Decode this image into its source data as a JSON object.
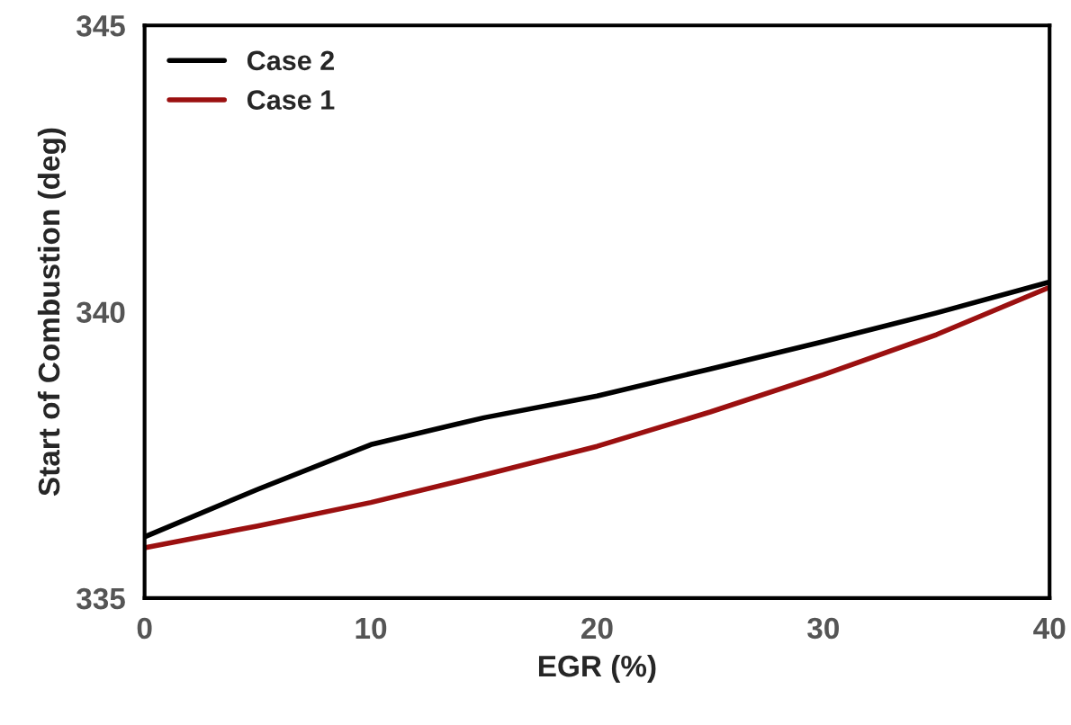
{
  "chart_data": {
    "type": "line",
    "xlabel": "EGR (%)",
    "ylabel": "Start of Combustion (deg)",
    "x": [
      0,
      5,
      10,
      15,
      20,
      25,
      30,
      35,
      40
    ],
    "series": [
      {
        "name": "Case 2",
        "color": "#000000",
        "values": [
          336.07,
          336.9,
          337.68,
          338.15,
          338.53,
          339.0,
          339.48,
          339.98,
          340.52
        ]
      },
      {
        "name": "Case 1",
        "color": "#9b1010",
        "values": [
          335.88,
          336.26,
          336.67,
          337.15,
          337.65,
          338.25,
          338.9,
          339.6,
          340.43
        ]
      }
    ],
    "xlim": [
      0,
      40
    ],
    "xticks": [
      0,
      10,
      20,
      30,
      40
    ],
    "ylim": [
      335,
      345
    ],
    "yticks": [
      335,
      340,
      345
    ],
    "grid": false,
    "legend": "top left",
    "marker": "none",
    "line_style": "solid"
  }
}
